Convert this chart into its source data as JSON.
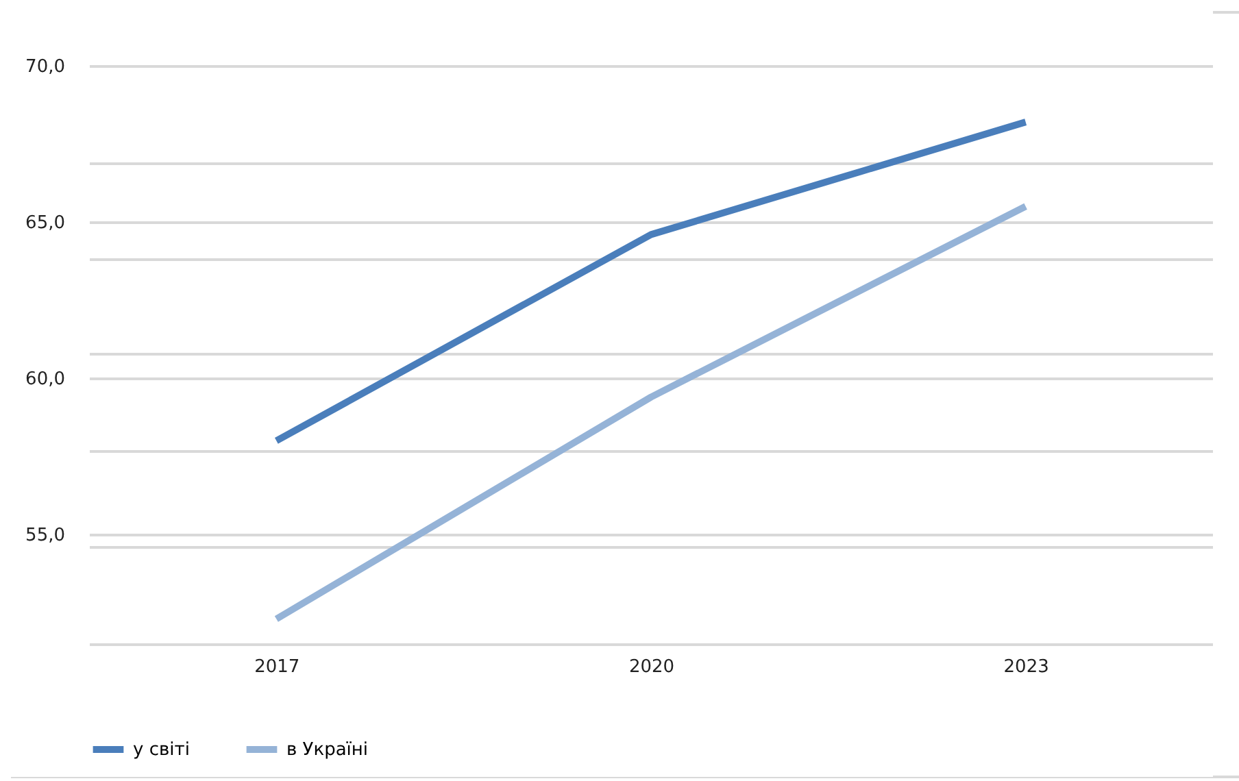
{
  "chart_data": {
    "type": "line",
    "categories": [
      "2017",
      "2020",
      "2023"
    ],
    "series": [
      {
        "name": "у світі",
        "color": "#4a7ebb",
        "values": [
          58.0,
          64.6,
          68.2
        ]
      },
      {
        "name": "в Україні",
        "color": "#95b3d7",
        "values": [
          52.3,
          59.4,
          65.5
        ]
      }
    ],
    "ylim": [
      51.5,
      70
    ],
    "yticks": [
      {
        "value": 51.5,
        "label": null
      },
      {
        "value": 54.6,
        "label": null
      },
      {
        "value": 55,
        "label": "55,0"
      },
      {
        "value": 57.7,
        "label": null
      },
      {
        "value": 60,
        "label": "60,0"
      },
      {
        "value": 60.8,
        "label": null
      },
      {
        "value": 63.8,
        "label": null
      },
      {
        "value": 65,
        "label": "65,0"
      },
      {
        "value": 66.9,
        "label": null
      },
      {
        "value": 70,
        "label": "70,0"
      }
    ],
    "grid": "y",
    "legend": "bottom",
    "marker": "none",
    "line_style": "solid"
  }
}
